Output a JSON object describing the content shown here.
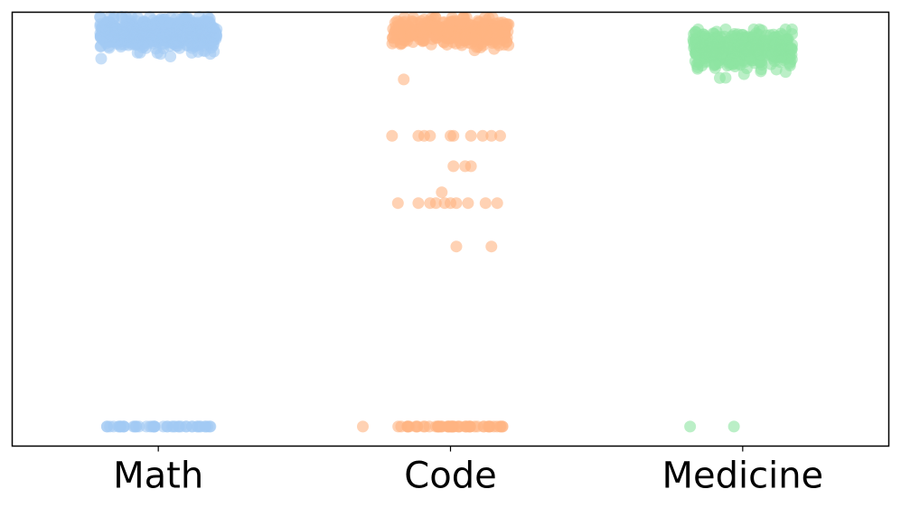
{
  "chart_data": {
    "type": "scatter",
    "subtype": "strip",
    "title": "",
    "xlabel": "",
    "ylabel": "",
    "categories": [
      "Math",
      "Code",
      "Medicine"
    ],
    "ylim": [
      0,
      1
    ],
    "yticks_shown": false,
    "grid": false,
    "legend": "none",
    "series": [
      {
        "category": "Math",
        "color": "#a1c9f4",
        "clusters": [
          {
            "y_mean": 0.95,
            "y_spread": 0.03,
            "count": 520,
            "x_jitter": 0.2
          },
          {
            "y_mean": 0.045,
            "y_spread": 0.0,
            "count": 45,
            "x_jitter": 0.18
          }
        ]
      },
      {
        "category": "Code",
        "color": "#ffb482",
        "clusters": [
          {
            "y_mean": 0.955,
            "y_spread": 0.025,
            "count": 420,
            "x_jitter": 0.2
          },
          {
            "y_mean": 0.045,
            "y_spread": 0.0,
            "count": 55,
            "x_jitter": 0.18
          }
        ],
        "points": [
          {
            "x": -0.16,
            "y": 0.845
          },
          {
            "x": -0.2,
            "y": 0.715
          },
          {
            "x": -0.11,
            "y": 0.715
          },
          {
            "x": -0.09,
            "y": 0.715
          },
          {
            "x": -0.07,
            "y": 0.715
          },
          {
            "x": 0.0,
            "y": 0.715
          },
          {
            "x": 0.01,
            "y": 0.715
          },
          {
            "x": 0.07,
            "y": 0.715
          },
          {
            "x": 0.11,
            "y": 0.715
          },
          {
            "x": 0.14,
            "y": 0.715
          },
          {
            "x": 0.17,
            "y": 0.715
          },
          {
            "x": 0.01,
            "y": 0.645
          },
          {
            "x": 0.05,
            "y": 0.645
          },
          {
            "x": 0.07,
            "y": 0.645
          },
          {
            "x": -0.03,
            "y": 0.585
          },
          {
            "x": -0.18,
            "y": 0.56
          },
          {
            "x": -0.11,
            "y": 0.56
          },
          {
            "x": -0.07,
            "y": 0.56
          },
          {
            "x": -0.05,
            "y": 0.56
          },
          {
            "x": -0.02,
            "y": 0.56
          },
          {
            "x": 0.0,
            "y": 0.56
          },
          {
            "x": 0.02,
            "y": 0.56
          },
          {
            "x": 0.06,
            "y": 0.56
          },
          {
            "x": 0.12,
            "y": 0.56
          },
          {
            "x": 0.16,
            "y": 0.56
          },
          {
            "x": 0.02,
            "y": 0.46
          },
          {
            "x": 0.14,
            "y": 0.46
          },
          {
            "x": -0.3,
            "y": 0.045
          }
        ]
      },
      {
        "category": "Medicine",
        "color": "#8de5a1",
        "clusters": [
          {
            "y_mean": 0.915,
            "y_spread": 0.035,
            "count": 430,
            "x_jitter": 0.17
          }
        ],
        "points": [
          {
            "x": -0.18,
            "y": 0.045
          },
          {
            "x": -0.03,
            "y": 0.045
          }
        ]
      }
    ]
  }
}
